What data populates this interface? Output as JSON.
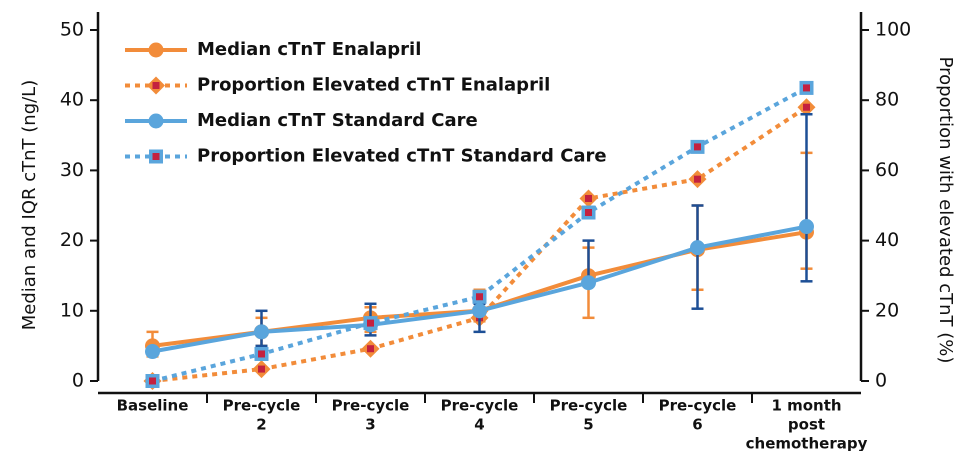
{
  "chart_data": {
    "type": "line",
    "categories": [
      [
        "Baseline"
      ],
      [
        "Pre-cycle",
        "2"
      ],
      [
        "Pre-cycle",
        "3"
      ],
      [
        "Pre-cycle",
        "4"
      ],
      [
        "Pre-cycle",
        "5"
      ],
      [
        "Pre-cycle",
        "6"
      ],
      [
        "1 month",
        "post",
        "chemotherapy"
      ]
    ],
    "y_label": "Median and IQR cTnT (ng/L)",
    "y2_label": "Proportion with elevated cTnT (%)",
    "ylim": [
      0,
      50
    ],
    "yticks": [
      0,
      10,
      20,
      30,
      40,
      50
    ],
    "y2lim": [
      0,
      100
    ],
    "y2ticks": [
      0,
      20,
      40,
      60,
      80,
      100
    ],
    "legend": "upper left",
    "series": [
      {
        "name": "Median cTnT Enalapril",
        "color": "#f28c3a",
        "marker": "circle",
        "linestyle": "solid",
        "error_color": "#f28c3a",
        "values": [
          5,
          7,
          9,
          10,
          15,
          18.7,
          21.2
        ],
        "iqr_low": [
          3.5,
          5,
          7,
          8.5,
          9,
          13,
          16
        ],
        "iqr_high": [
          7,
          9,
          10.5,
          13,
          19,
          25,
          32.5
        ]
      },
      {
        "name": "Proportion Elevated cTnT Enalapril",
        "color": "#f28c3a",
        "marker": "diamond",
        "linestyle": "dotted",
        "axis": "y2",
        "values": [
          0,
          3.4,
          9.2,
          18,
          52,
          57.5,
          78
        ]
      },
      {
        "name": "Median cTnT Standard Care",
        "color": "#5aa5dc",
        "marker": "circle",
        "linestyle": "solid",
        "error_color": "#1d4f96",
        "values": [
          4.2,
          7,
          8,
          10,
          14,
          19,
          22
        ],
        "iqr_low": [
          null,
          5,
          6.5,
          7,
          null,
          10.3,
          14.2
        ],
        "iqr_high": [
          null,
          10,
          11,
          11,
          20,
          25,
          38
        ]
      },
      {
        "name": "Proportion Elevated cTnT Standard Care",
        "color": "#5aa5dc",
        "marker": "square",
        "linestyle": "dotted",
        "axis": "y2",
        "values": [
          0,
          7.7,
          16.5,
          24,
          48,
          66.7,
          83.5
        ]
      }
    ]
  }
}
